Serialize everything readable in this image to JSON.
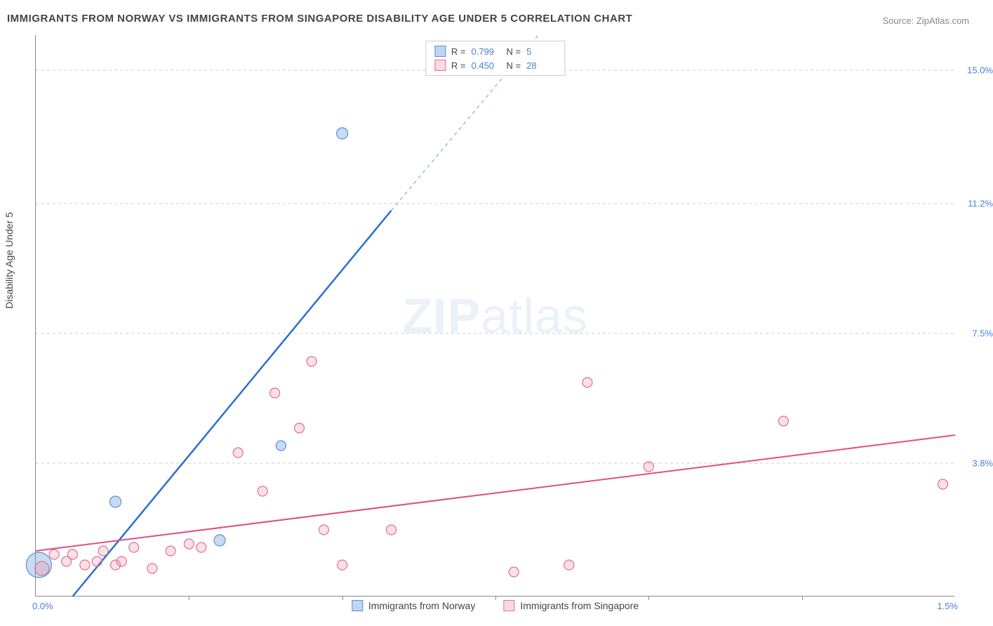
{
  "title": "IMMIGRANTS FROM NORWAY VS IMMIGRANTS FROM SINGAPORE DISABILITY AGE UNDER 5 CORRELATION CHART",
  "source": "Source: ZipAtlas.com",
  "yaxis_title": "Disability Age Under 5",
  "watermark_bold": "ZIP",
  "watermark_light": "atlas",
  "chart": {
    "type": "scatter",
    "background_color": "#ffffff",
    "grid_color": "#cccccc",
    "axis_color": "#888888",
    "text_color": "#444444",
    "value_color": "#4a7fd8",
    "title_fontsize": 15,
    "label_fontsize": 14,
    "tick_fontsize": 13,
    "xlim": [
      0.0,
      1.5
    ],
    "ylim": [
      0.0,
      16.0
    ],
    "xticks_labeled": [
      {
        "v": 0.0,
        "label": "0.0%"
      },
      {
        "v": 1.5,
        "label": "1.5%"
      }
    ],
    "xticks_minor": [
      0.25,
      0.5,
      0.75,
      1.0,
      1.25
    ],
    "yticks": [
      {
        "v": 3.8,
        "label": "3.8%"
      },
      {
        "v": 7.5,
        "label": "7.5%"
      },
      {
        "v": 11.2,
        "label": "11.2%"
      },
      {
        "v": 15.0,
        "label": "15.0%"
      }
    ],
    "series": [
      {
        "name": "Immigrants from Norway",
        "color_fill": "rgba(100,150,220,0.35)",
        "color_stroke": "#5a8fd0",
        "line_color": "#2a6fd0",
        "line_width": 2.5,
        "dash_color": "#9bb8e0",
        "R": "0.799",
        "N": "5",
        "points": [
          {
            "x": 0.005,
            "y": 0.9,
            "r": 18
          },
          {
            "x": 0.13,
            "y": 2.7,
            "r": 8
          },
          {
            "x": 0.3,
            "y": 1.6,
            "r": 8
          },
          {
            "x": 0.4,
            "y": 4.3,
            "r": 7
          },
          {
            "x": 0.5,
            "y": 13.2,
            "r": 8
          }
        ],
        "trend": {
          "x1": 0.06,
          "y1": 0.0,
          "x2": 0.58,
          "y2": 11.0
        },
        "trend_dash": {
          "x1": 0.58,
          "y1": 11.0,
          "x2": 0.82,
          "y2": 16.0
        }
      },
      {
        "name": "Immigrants from Singapore",
        "color_fill": "rgba(240,130,160,0.25)",
        "color_stroke": "#e07090",
        "line_color": "#e05080",
        "line_width": 2,
        "R": "0.450",
        "N": "28",
        "points": [
          {
            "x": 0.01,
            "y": 0.8,
            "r": 10
          },
          {
            "x": 0.03,
            "y": 1.2,
            "r": 7
          },
          {
            "x": 0.05,
            "y": 1.0,
            "r": 7
          },
          {
            "x": 0.06,
            "y": 1.2,
            "r": 7
          },
          {
            "x": 0.08,
            "y": 0.9,
            "r": 7
          },
          {
            "x": 0.1,
            "y": 1.0,
            "r": 7
          },
          {
            "x": 0.11,
            "y": 1.3,
            "r": 7
          },
          {
            "x": 0.13,
            "y": 0.9,
            "r": 7
          },
          {
            "x": 0.14,
            "y": 1.0,
            "r": 7
          },
          {
            "x": 0.16,
            "y": 1.4,
            "r": 7
          },
          {
            "x": 0.19,
            "y": 0.8,
            "r": 7
          },
          {
            "x": 0.22,
            "y": 1.3,
            "r": 7
          },
          {
            "x": 0.25,
            "y": 1.5,
            "r": 7
          },
          {
            "x": 0.27,
            "y": 1.4,
            "r": 7
          },
          {
            "x": 0.33,
            "y": 4.1,
            "r": 7
          },
          {
            "x": 0.37,
            "y": 3.0,
            "r": 7
          },
          {
            "x": 0.39,
            "y": 5.8,
            "r": 7
          },
          {
            "x": 0.43,
            "y": 4.8,
            "r": 7
          },
          {
            "x": 0.45,
            "y": 6.7,
            "r": 7
          },
          {
            "x": 0.47,
            "y": 1.9,
            "r": 7
          },
          {
            "x": 0.5,
            "y": 0.9,
            "r": 7
          },
          {
            "x": 0.58,
            "y": 1.9,
            "r": 7
          },
          {
            "x": 0.78,
            "y": 0.7,
            "r": 7
          },
          {
            "x": 0.87,
            "y": 0.9,
            "r": 7
          },
          {
            "x": 0.9,
            "y": 6.1,
            "r": 7
          },
          {
            "x": 1.0,
            "y": 3.7,
            "r": 7
          },
          {
            "x": 1.22,
            "y": 5.0,
            "r": 7
          },
          {
            "x": 1.48,
            "y": 3.2,
            "r": 7
          }
        ],
        "trend": {
          "x1": 0.0,
          "y1": 1.3,
          "x2": 1.5,
          "y2": 4.6
        }
      }
    ]
  },
  "legend_labels": {
    "r_prefix": "R =",
    "n_prefix": "N ="
  }
}
